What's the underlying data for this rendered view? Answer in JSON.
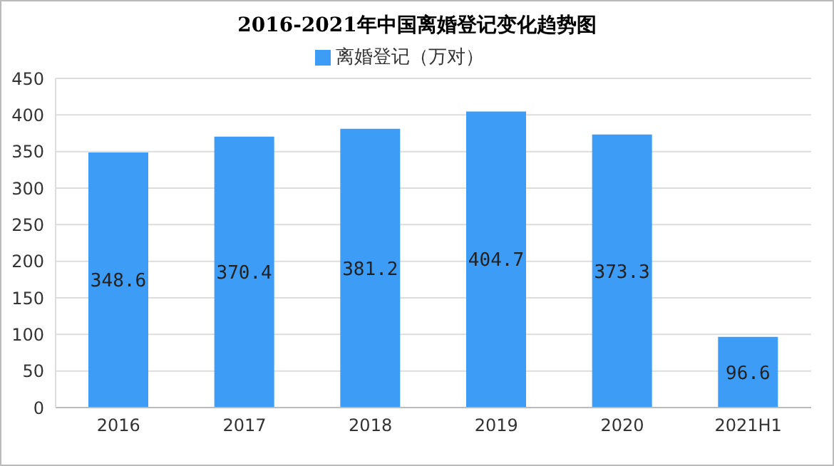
{
  "chart_data": {
    "type": "bar",
    "title": "2016-2021年中国离婚登记变化趋势图",
    "categories": [
      "2016",
      "2017",
      "2018",
      "2019",
      "2020",
      "2021H1"
    ],
    "series": [
      {
        "name": "离婚登记（万对）",
        "color": "#3d9cf5",
        "values": [
          348.6,
          370.4,
          381.2,
          404.7,
          373.3,
          96.6
        ]
      }
    ],
    "ylim": [
      0,
      450
    ],
    "yticks": [
      0,
      50,
      100,
      150,
      200,
      250,
      300,
      350,
      400,
      450
    ],
    "grid": "y",
    "legend": "top",
    "data_labels": true
  }
}
